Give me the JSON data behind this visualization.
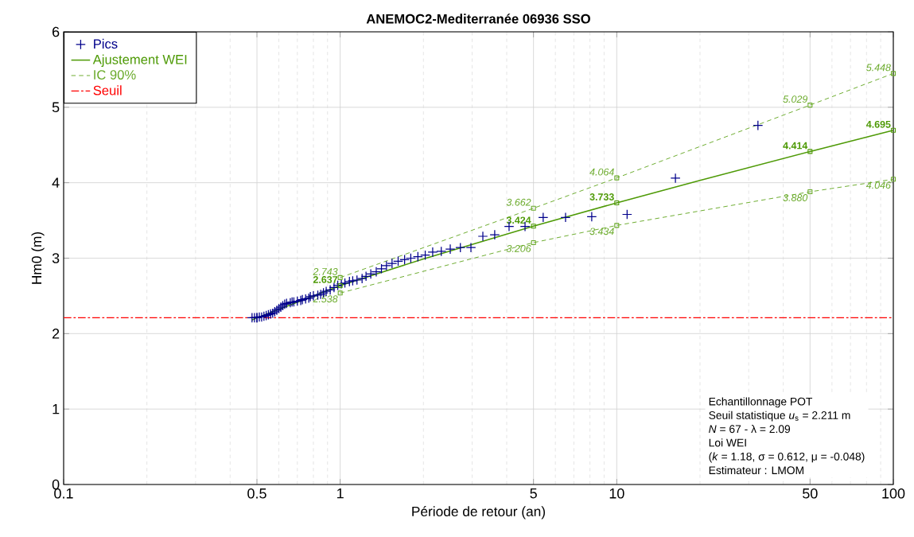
{
  "chart_data": {
    "type": "line",
    "title": "ANEMOC2-Mediterranée 06936 SSO",
    "xlabel": "Période de retour (an)",
    "ylabel": "Hm0 (m)",
    "log": "x",
    "xlim": [
      0.1,
      100
    ],
    "xticks": [
      0.1,
      0.5,
      1,
      5,
      10,
      50,
      100
    ],
    "ylim": [
      0,
      6
    ],
    "yticks": [
      0,
      1,
      2,
      3,
      4,
      5,
      6
    ],
    "grid": true,
    "legend": "top left",
    "series": [
      {
        "name": "Pics",
        "type": "scatter",
        "color": "#00008b",
        "marker": "cross",
        "x": [
          32.4,
          16.3,
          10.9,
          8.12,
          6.53,
          5.42,
          4.66,
          4.08,
          3.62,
          3.28,
          2.97,
          2.72,
          2.5,
          2.32,
          2.16,
          2.03,
          1.91,
          1.8,
          1.71,
          1.62,
          1.54,
          1.47,
          1.41,
          1.35,
          1.29,
          1.24,
          1.2,
          1.15,
          1.11,
          1.08,
          1.04,
          1.01,
          0.98,
          0.95,
          0.92,
          0.89,
          0.87,
          0.85,
          0.83,
          0.8,
          0.78,
          0.77,
          0.75,
          0.73,
          0.72,
          0.7,
          0.68,
          0.67,
          0.66,
          0.64,
          0.63,
          0.62,
          0.61,
          0.6,
          0.59,
          0.58,
          0.57,
          0.56,
          0.55,
          0.54,
          0.53,
          0.52,
          0.51,
          0.5,
          0.5,
          0.49,
          0.48
        ],
        "values": [
          4.76,
          4.06,
          3.58,
          3.55,
          3.54,
          3.54,
          3.42,
          3.42,
          3.31,
          3.29,
          3.14,
          3.14,
          3.12,
          3.09,
          3.08,
          3.04,
          3.02,
          3.0,
          2.98,
          2.96,
          2.93,
          2.9,
          2.86,
          2.82,
          2.79,
          2.76,
          2.73,
          2.71,
          2.7,
          2.69,
          2.67,
          2.66,
          2.64,
          2.61,
          2.58,
          2.56,
          2.54,
          2.52,
          2.51,
          2.5,
          2.49,
          2.47,
          2.46,
          2.45,
          2.44,
          2.43,
          2.42,
          2.42,
          2.41,
          2.4,
          2.39,
          2.37,
          2.35,
          2.33,
          2.31,
          2.29,
          2.27,
          2.26,
          2.25,
          2.24,
          2.23,
          2.22,
          2.22,
          2.21,
          2.21,
          2.21,
          2.21
        ]
      },
      {
        "name": "Ajustement WEI",
        "color": "#4e9a06",
        "marker": "square",
        "line_style": "solid",
        "x": [
          0.48,
          0.5,
          1,
          2,
          5,
          10,
          20,
          50,
          100
        ],
        "values": [
          2.18,
          2.21,
          2.637,
          2.99,
          3.424,
          3.733,
          4.03,
          4.414,
          4.695
        ],
        "value_labels": [
          null,
          null,
          "2.637",
          null,
          "3.424",
          "3.733",
          null,
          "4.414",
          "4.695"
        ]
      },
      {
        "name": "IC 90%",
        "color": "#6aaa2a",
        "marker": "square",
        "line_style": "dashed",
        "x": [
          1,
          5,
          10,
          50,
          100
        ],
        "values": [
          2.743,
          3.662,
          4.064,
          5.029,
          5.448
        ],
        "value_labels": [
          "2.743",
          "3.662",
          "4.064",
          "5.029",
          "5.448"
        ]
      },
      {
        "color": "#6aaa2a",
        "marker": "square",
        "line_style": "dashed",
        "x": [
          1,
          5,
          10,
          50,
          100
        ],
        "values": [
          2.538,
          3.206,
          3.434,
          3.88,
          4.046
        ],
        "value_labels": [
          "2.538",
          "3.206",
          "3.434",
          "3.880",
          "4.046"
        ]
      }
    ],
    "ref_lines": [
      {
        "axis": "y",
        "value": 2.211,
        "label": "Seuil",
        "color": "#ff0000",
        "line_style": "dashdot"
      }
    ],
    "annotations": [
      "Echantillonnage POT",
      "Seuil statistique *u*$_{s}$ = 2.211 m",
      "*N* = 67 - λ = 2.09",
      "Loi WEI",
      "(*k* = 1.18, σ = 0.612, μ = -0.048)",
      "Estimateur : LMOM"
    ]
  }
}
